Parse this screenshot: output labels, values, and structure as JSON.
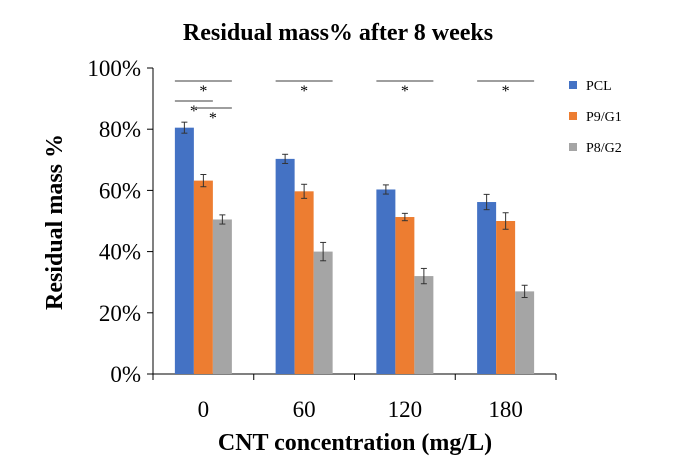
{
  "chart_data": {
    "type": "bar",
    "title": "Residual mass% after 8 weeks",
    "xlabel": "CNT concentration (mg/L)",
    "ylabel": "Residual mass %",
    "categories": [
      "0",
      "60",
      "120",
      "180"
    ],
    "ylim": [
      0,
      100
    ],
    "yticks": [
      "0%",
      "20%",
      "40%",
      "60%",
      "80%",
      "100%"
    ],
    "grid": false,
    "legend_position": "right",
    "series": [
      {
        "name": "PCL",
        "color": "#4472c4",
        "values": [
          80.5,
          70.3,
          60.3,
          56.2
        ],
        "errors": [
          1.8,
          1.5,
          1.5,
          2.5
        ]
      },
      {
        "name": "P9/G1",
        "color": "#ed7d31",
        "values": [
          63.2,
          59.7,
          51.3,
          50.0
        ],
        "errors": [
          2.0,
          2.3,
          1.2,
          2.7
        ]
      },
      {
        "name": "P8/G2",
        "color": "#a5a5a5",
        "values": [
          50.5,
          40.0,
          32.0,
          27.0
        ],
        "errors": [
          1.5,
          3.0,
          2.5,
          2.0
        ]
      }
    ],
    "annotations": [
      {
        "text": "*",
        "group": "0",
        "between": [
          "PCL",
          "P8/G2"
        ]
      },
      {
        "text": "*",
        "group": "0",
        "between": [
          "PCL",
          "P9/G1"
        ]
      },
      {
        "text": "*",
        "group": "0",
        "between": [
          "P9/G1",
          "P8/G2"
        ]
      },
      {
        "text": "*",
        "group": "60",
        "between": [
          "PCL",
          "P8/G2"
        ]
      },
      {
        "text": "*",
        "group": "120",
        "between": [
          "PCL",
          "P8/G2"
        ]
      },
      {
        "text": "*",
        "group": "180",
        "between": [
          "PCL",
          "P8/G2"
        ]
      }
    ]
  }
}
